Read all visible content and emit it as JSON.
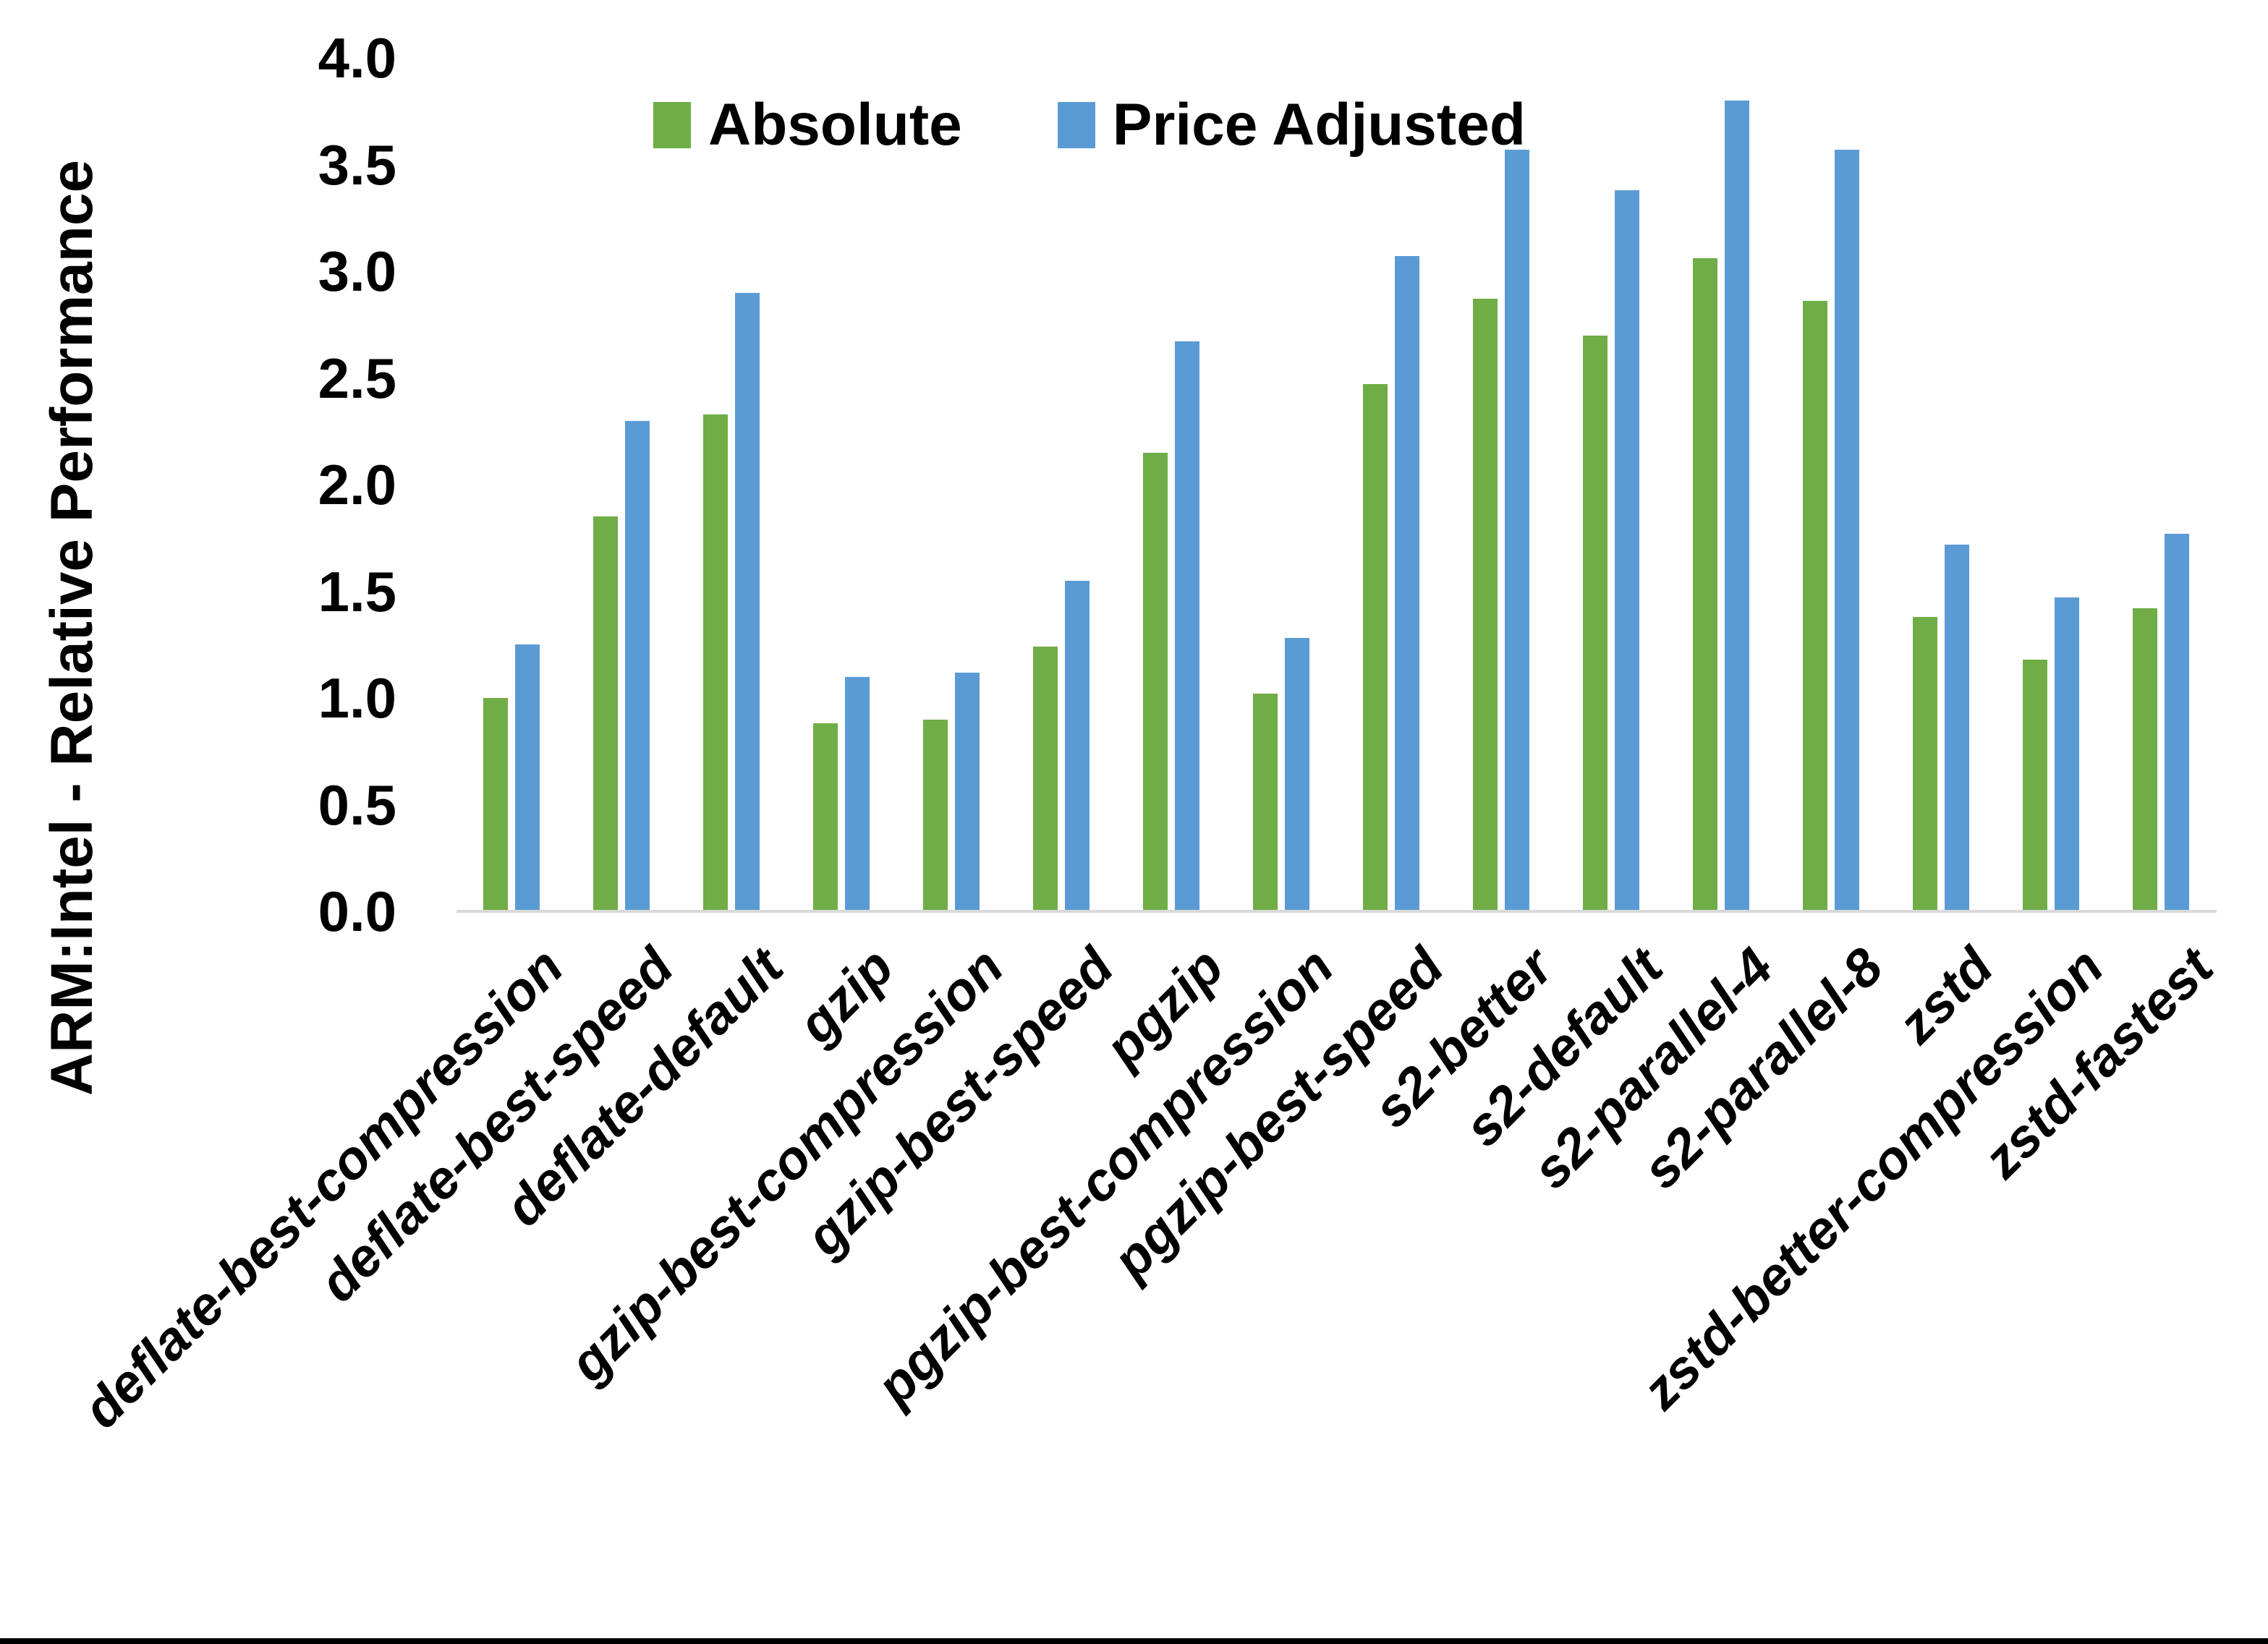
{
  "chart_data": {
    "type": "bar",
    "title": "",
    "xlabel": "",
    "ylabel": "ARM:Intel - Relative Performance",
    "ylim": [
      0.0,
      4.0
    ],
    "ytick_step": 0.5,
    "ytick_labels": [
      "0.0",
      "0.5",
      "1.0",
      "1.5",
      "2.0",
      "2.5",
      "3.0",
      "3.5",
      "4.0"
    ],
    "grid": false,
    "legend_position": "top-inside-left",
    "background_color": "#FFFFFF",
    "axis_line_color": "#D9D9D9",
    "text_color": "#000000",
    "categories": [
      "deflate-best-compression",
      "deflate-best-speed",
      "deflate-default",
      "gzip",
      "gzip-best-compression",
      "gzip-best-speed",
      "pgzip",
      "pgzip-best-compression",
      "pgzip-best-speed",
      "s2-better",
      "s2-default",
      "s2-parallel-4",
      "s2-parallel-8",
      "zstd",
      "zstd-better-compression",
      "zstd-fastest"
    ],
    "series": [
      {
        "name": "Absolute",
        "color": "#70AD47",
        "values": [
          1.0,
          1.85,
          2.33,
          0.88,
          0.9,
          1.24,
          2.15,
          1.02,
          2.47,
          2.87,
          2.7,
          3.06,
          2.86,
          1.38,
          1.18,
          1.42
        ]
      },
      {
        "name": "Price Adjusted",
        "color": "#5B9BD5",
        "values": [
          1.25,
          2.3,
          2.9,
          1.1,
          1.12,
          1.55,
          2.67,
          1.28,
          3.07,
          3.57,
          3.38,
          3.8,
          3.57,
          1.72,
          1.47,
          1.77
        ]
      }
    ]
  }
}
